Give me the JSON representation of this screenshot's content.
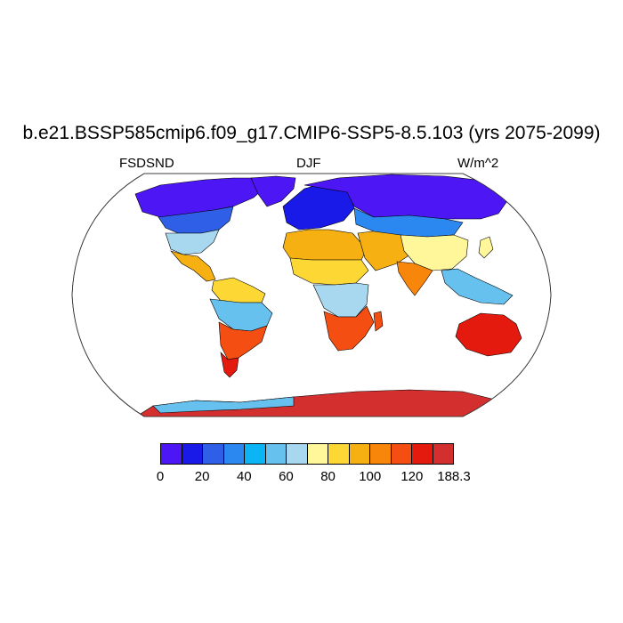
{
  "title": "b.e21.BSSP585cmip6.f09_g17.CMIP6-SSP5-8.5.103 (yrs 2075-2099)",
  "subtitle": {
    "left": "FSDSND",
    "center": "DJF",
    "right": "W/m^2"
  },
  "map": {
    "projection": "Robinson",
    "ocean_color": "#ffffff",
    "coastline_color": "#000000",
    "regions": [
      {
        "name": "north-america-north",
        "level": 0
      },
      {
        "name": "north-america-mid",
        "level": 2
      },
      {
        "name": "north-america-south",
        "level": 6
      },
      {
        "name": "mexico-central-america",
        "level": 9
      },
      {
        "name": "south-america-north",
        "level": 8
      },
      {
        "name": "amazon",
        "level": 5
      },
      {
        "name": "south-america-south",
        "level": 11
      },
      {
        "name": "patagonia",
        "level": 12
      },
      {
        "name": "greenland",
        "level": 0
      },
      {
        "name": "europe",
        "level": 1
      },
      {
        "name": "north-africa",
        "level": 9
      },
      {
        "name": "sahara",
        "level": 8
      },
      {
        "name": "central-africa",
        "level": 6
      },
      {
        "name": "southern-africa",
        "level": 11
      },
      {
        "name": "middle-east",
        "level": 9
      },
      {
        "name": "india",
        "level": 10
      },
      {
        "name": "russia-siberia",
        "level": 0
      },
      {
        "name": "central-asia",
        "level": 3
      },
      {
        "name": "china",
        "level": 7
      },
      {
        "name": "southeast-asia",
        "level": 5
      },
      {
        "name": "australia",
        "level": 12
      },
      {
        "name": "antarctica",
        "level": 13
      }
    ]
  },
  "colorbar": {
    "colors": [
      "#4d16f5",
      "#1a1ae8",
      "#2e5fe6",
      "#2a88f0",
      "#0ab4f5",
      "#66c1ee",
      "#a8d8f0",
      "#fff79a",
      "#fdd835",
      "#f7b012",
      "#f7860a",
      "#f54e12",
      "#e41a0e",
      "#d42f2f"
    ],
    "labels": [
      "0",
      "20",
      "40",
      "60",
      "80",
      "100",
      "120",
      "188.3"
    ]
  }
}
